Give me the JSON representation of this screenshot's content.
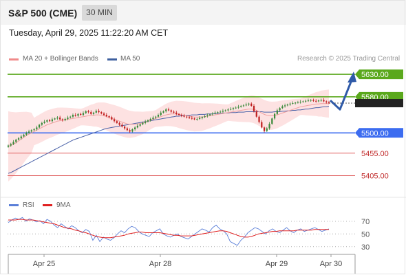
{
  "header": {
    "instrument": "S&P 500 (CME)",
    "timeframe": "30 MIN"
  },
  "datetime": "Tuesday, April 29, 2025 11:22:20 AM CET",
  "credit": "Research © 2025 Trading Central",
  "legend_main": [
    {
      "label": "MA 20 + Bollinger Bands",
      "color": "#f08a8a"
    },
    {
      "label": "MA 50",
      "color": "#3d5f9e"
    }
  ],
  "legend_rsi": [
    {
      "label": "RSI",
      "color": "#5b7fd8"
    },
    {
      "label": "9MA",
      "color": "#e02020"
    }
  ],
  "colors": {
    "resistance": "#5aa81c",
    "pivot": "#3c6cf0",
    "support": "#e06060",
    "bollinger_fill": "#fde2e2",
    "ma20": "#f0a0a0",
    "ma50": "#4a62a8",
    "candle_up": "#3a8a3a",
    "candle_down": "#c02020",
    "arrow": "#2f5aa8",
    "current_price": "#222222"
  },
  "chart_data": [
    {
      "type": "candlestick",
      "title": "",
      "ylim": [
        5360,
        5650
      ],
      "x_labels": [
        "Apr 25",
        "Apr 28",
        "Apr 29",
        "Apr 30"
      ],
      "price_levels": [
        {
          "label": "5630.00",
          "value": 5630,
          "kind": "resistance"
        },
        {
          "label": "5580.00",
          "value": 5580,
          "kind": "resistance"
        },
        {
          "label": "5500.00",
          "value": 5500,
          "kind": "pivot"
        },
        {
          "label": "5455.00",
          "value": 5455,
          "kind": "support"
        },
        {
          "label": "5405.00",
          "value": 5405,
          "kind": "support"
        }
      ],
      "current_price": 5566,
      "close": [
        5472,
        5475,
        5480,
        5485,
        5488,
        5492,
        5496,
        5500,
        5503,
        5506,
        5508,
        5512,
        5518,
        5522,
        5525,
        5528,
        5526,
        5530,
        5532,
        5534,
        5530,
        5528,
        5531,
        5534,
        5536,
        5540,
        5538,
        5542,
        5540,
        5544,
        5548,
        5546,
        5542,
        5545,
        5549,
        5546,
        5543,
        5540,
        5537,
        5535,
        5530,
        5526,
        5522,
        5518,
        5514,
        5510,
        5506,
        5503,
        5508,
        5512,
        5516,
        5519,
        5522,
        5525,
        5528,
        5531,
        5534,
        5536,
        5540,
        5545,
        5548,
        5552,
        5550,
        5547,
        5545,
        5542,
        5540,
        5538,
        5536,
        5535,
        5533,
        5532,
        5530,
        5531,
        5533,
        5535,
        5537,
        5539,
        5541,
        5543,
        5545,
        5546,
        5547,
        5549,
        5550,
        5552,
        5553,
        5555,
        5556,
        5558,
        5560,
        5561,
        5563,
        5565,
        5560,
        5548,
        5536,
        5524,
        5512,
        5504,
        5510,
        5520,
        5532,
        5542,
        5550,
        5555,
        5559,
        5561,
        5563,
        5565,
        5566,
        5567,
        5568,
        5569,
        5570,
        5571,
        5572,
        5573,
        5571,
        5570,
        5572,
        5573,
        5570,
        5568,
        5566
      ],
      "ma20": [
        5470,
        5472,
        5475,
        5478,
        5482,
        5486,
        5490,
        5494,
        5497,
        5500,
        5503,
        5506,
        5509,
        5512,
        5515,
        5518,
        5520,
        5522,
        5524,
        5526,
        5527,
        5528,
        5529,
        5530,
        5531,
        5532,
        5533,
        5534,
        5535,
        5536,
        5537,
        5538,
        5539,
        5539,
        5540,
        5540,
        5539,
        5538,
        5536,
        5534,
        5532,
        5530,
        5528,
        5526,
        5524,
        5522,
        5520,
        5519,
        5519,
        5519,
        5520,
        5521,
        5522,
        5524,
        5526,
        5528,
        5530,
        5532,
        5534,
        5536,
        5538,
        5540,
        5541,
        5542,
        5542,
        5542,
        5541,
        5540,
        5539,
        5538,
        5537,
        5536,
        5535,
        5535,
        5535,
        5535,
        5536,
        5537,
        5538,
        5539,
        5540,
        5541,
        5542,
        5543,
        5544,
        5545,
        5546,
        5547,
        5548,
        5549,
        5550,
        5551,
        5552,
        5553,
        5553,
        5552,
        5550,
        5547,
        5544,
        5541,
        5539,
        5538,
        5538,
        5539,
        5540,
        5542,
        5544,
        5546,
        5548,
        5550,
        5552,
        5554,
        5556,
        5558,
        5559,
        5560,
        5561,
        5562,
        5563,
        5564,
        5564,
        5565,
        5565,
        5565,
        5565
      ],
      "ma50": [
        5410,
        5412,
        5415,
        5418,
        5421,
        5424,
        5427,
        5430,
        5433,
        5436,
        5439,
        5442,
        5445,
        5448,
        5451,
        5454,
        5457,
        5460,
        5463,
        5466,
        5469,
        5472,
        5475,
        5478,
        5481,
        5484,
        5486,
        5488,
        5490,
        5492,
        5494,
        5496,
        5498,
        5500,
        5502,
        5504,
        5506,
        5508,
        5510,
        5511,
        5512,
        5513,
        5514,
        5515,
        5516,
        5517,
        5518,
        5519,
        5520,
        5521,
        5522,
        5523,
        5524,
        5525,
        5526,
        5527,
        5528,
        5529,
        5530,
        5531,
        5532,
        5533,
        5534,
        5535,
        5536,
        5537,
        5537,
        5538,
        5538,
        5539,
        5539,
        5540,
        5540,
        5540,
        5541,
        5541,
        5541,
        5542,
        5542,
        5542,
        5543,
        5543,
        5543,
        5544,
        5544,
        5544,
        5545,
        5545,
        5545,
        5546,
        5546,
        5546,
        5547,
        5547,
        5547,
        5547,
        5547,
        5547,
        5547,
        5546,
        5546,
        5546,
        5546,
        5547,
        5547,
        5547,
        5548,
        5548,
        5549,
        5549,
        5550,
        5550,
        5551,
        5551,
        5552,
        5553,
        5553,
        5554,
        5555,
        5556,
        5556,
        5557,
        5558,
        5558,
        5559
      ],
      "forecast": {
        "pullback_to": 5552,
        "target": 5630
      }
    },
    {
      "type": "line",
      "title": "",
      "ylim": [
        20,
        85
      ],
      "y_ticks": [
        70,
        50,
        30
      ],
      "series": [
        {
          "name": "RSI",
          "values": [
            68,
            72,
            75,
            73,
            76,
            70,
            74,
            72,
            69,
            71,
            66,
            73,
            70,
            64,
            60,
            66,
            62,
            58,
            63,
            60,
            55,
            52,
            57,
            54,
            40,
            48,
            38,
            45,
            42,
            40,
            44,
            50,
            55,
            52,
            58,
            62,
            60,
            54,
            50,
            48,
            46,
            52,
            55,
            58,
            50,
            47,
            45,
            48,
            50,
            46,
            44,
            42,
            46,
            50,
            54,
            58,
            56,
            53,
            60,
            64,
            58,
            55,
            50,
            38,
            35,
            32,
            40,
            45,
            52,
            56,
            60,
            58,
            54,
            50,
            55,
            58,
            54,
            52,
            56,
            60,
            55,
            52,
            56,
            58,
            54,
            56,
            58,
            60,
            57,
            54,
            56,
            58
          ],
          "color": "#5b7fd8"
        },
        {
          "name": "9MA",
          "values": [
            72,
            72,
            72,
            73,
            73,
            72,
            72,
            72,
            71,
            70,
            69,
            68,
            67,
            66,
            64,
            62,
            60,
            59,
            58,
            56,
            55,
            53,
            52,
            50,
            48,
            46,
            45,
            44,
            44,
            44,
            45,
            46,
            47,
            48,
            50,
            51,
            52,
            53,
            53,
            52,
            52,
            52,
            52,
            52,
            51,
            50,
            49,
            48,
            48,
            47,
            47,
            47,
            47,
            48,
            49,
            50,
            51,
            52,
            53,
            54,
            55,
            55,
            54,
            52,
            50,
            48,
            46,
            45,
            45,
            46,
            48,
            50,
            51,
            52,
            53,
            54,
            54,
            55,
            55,
            55,
            55,
            55,
            56,
            56,
            56,
            56,
            56,
            57,
            57,
            57,
            57,
            57
          ],
          "color": "#e02020"
        }
      ]
    }
  ]
}
